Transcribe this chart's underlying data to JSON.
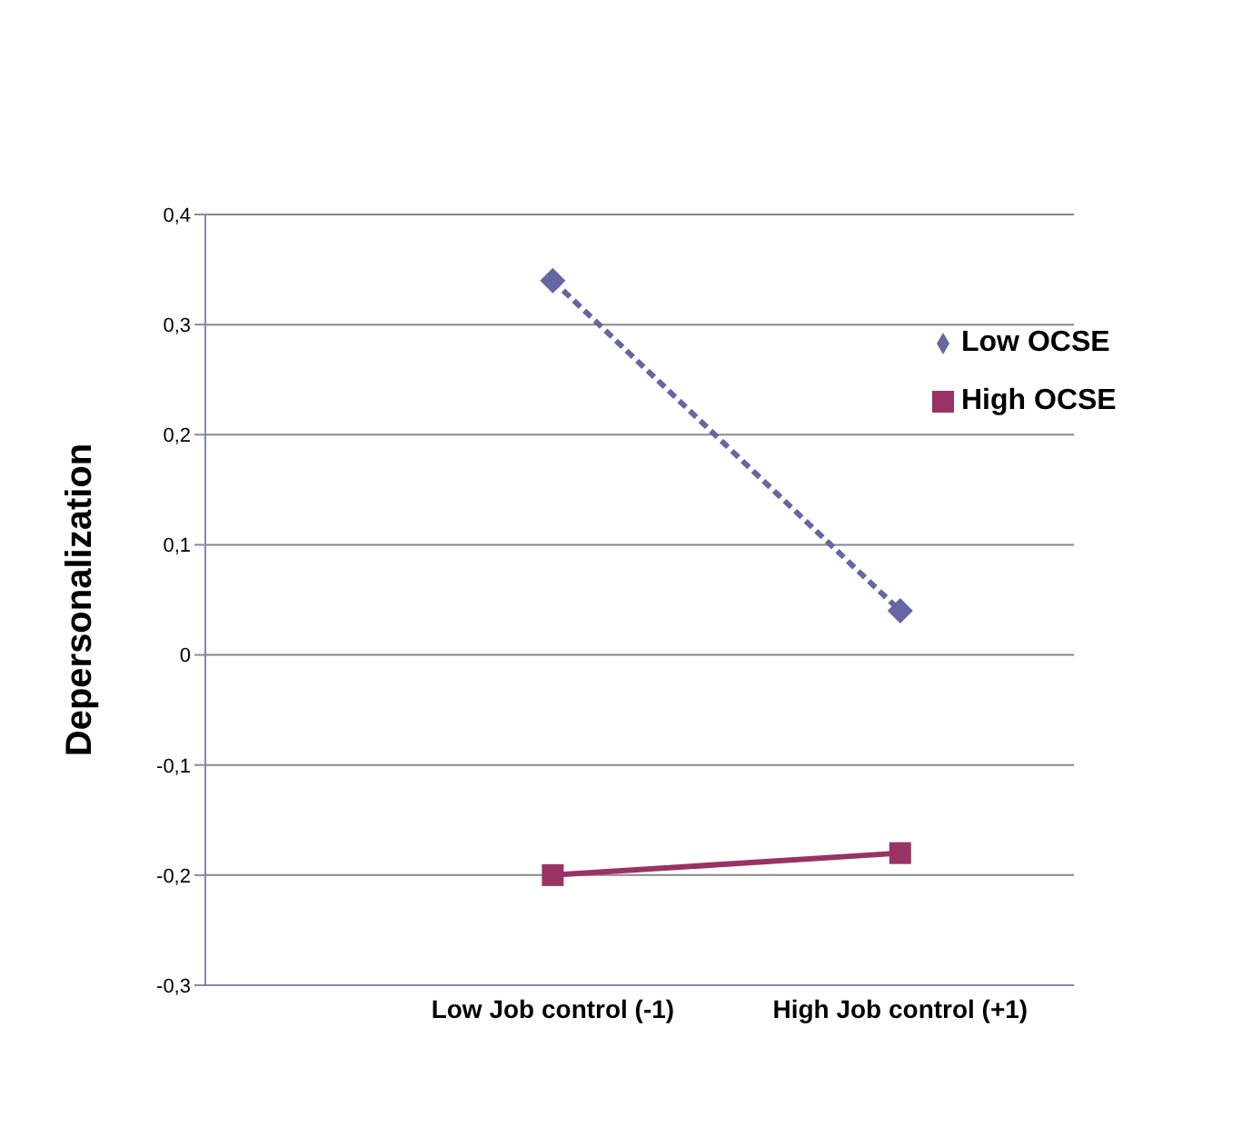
{
  "chart_data": {
    "type": "line",
    "ylabel": "Depersonalization",
    "categories": [
      "Low Job control (-1)",
      "High Job control (+1)"
    ],
    "series": [
      {
        "name": "Low OCSE",
        "color": "#6666a3",
        "values": [
          0.34,
          0.04
        ],
        "marker": "diamond",
        "line_style": "dashed"
      },
      {
        "name": "High OCSE",
        "color": "#993366",
        "values": [
          -0.2,
          -0.18
        ],
        "marker": "square",
        "line_style": "solid"
      }
    ],
    "ylim": [
      -0.3,
      0.4
    ],
    "yticks": [
      {
        "value": -0.3,
        "label": "-0,3"
      },
      {
        "value": -0.2,
        "label": "-0,2"
      },
      {
        "value": -0.1,
        "label": "-0,1"
      },
      {
        "value": 0,
        "label": "0"
      },
      {
        "value": 0.1,
        "label": "0,1"
      },
      {
        "value": 0.2,
        "label": "0,2"
      },
      {
        "value": 0.3,
        "label": "0,3"
      },
      {
        "value": 0.4,
        "label": "0,4"
      }
    ],
    "grid": "y",
    "legend": "right"
  }
}
